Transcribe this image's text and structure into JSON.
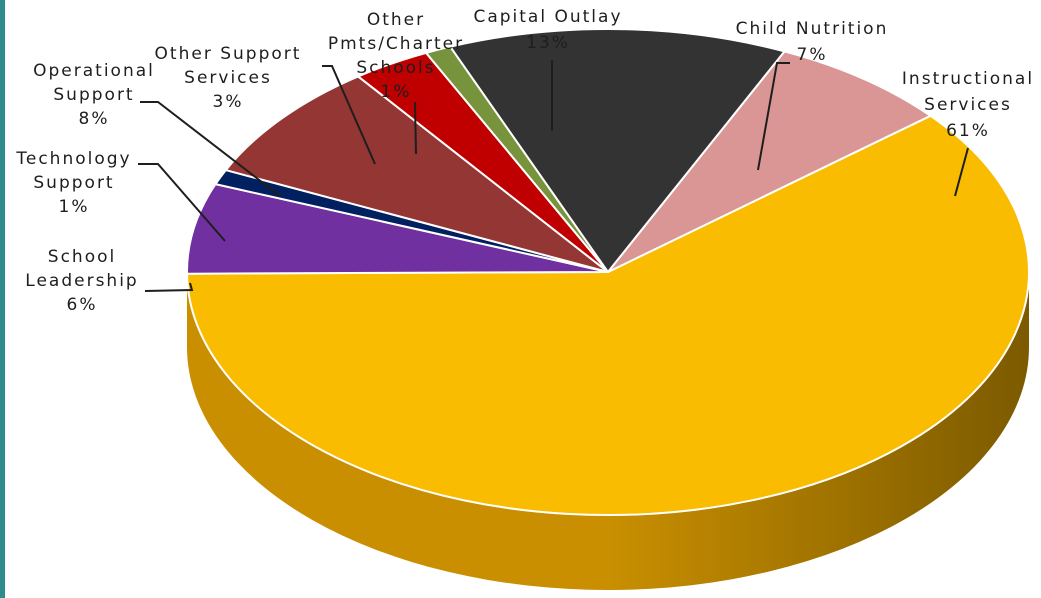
{
  "chart_data": {
    "type": "pie",
    "three_d": true,
    "legend": "none",
    "slices": [
      {
        "name": "Instructional Services",
        "label_lines": [
          "Instructional",
          "Services"
        ],
        "value": 61,
        "value_label": "61%",
        "color": "#f9bc00",
        "side_dark": "#7c5a00",
        "side_light": "#c98f00"
      },
      {
        "name": "School Leadership",
        "label_lines": [
          "School",
          "Leadership"
        ],
        "value": 6,
        "value_label": "6%",
        "color": "#7030a0",
        "side_dark": "#3e1a5a",
        "side_light": "#5b2785"
      },
      {
        "name": "Technology Support",
        "label_lines": [
          "Technology",
          "Support"
        ],
        "value": 1,
        "value_label": "1%",
        "color": "#002060",
        "side_dark": "#001030",
        "side_light": "#001a4d"
      },
      {
        "name": "Operational Support",
        "label_lines": [
          "Operational",
          "Support"
        ],
        "value": 8,
        "value_label": "8%",
        "color": "#943634",
        "side_dark": "#4f1c1b",
        "side_light": "#7a2d2b"
      },
      {
        "name": "Other Support Services",
        "label_lines": [
          "Other Support",
          "Services"
        ],
        "value": 3,
        "value_label": "3%",
        "color": "#c00000",
        "side_dark": "#600000",
        "side_light": "#9a0000"
      },
      {
        "name": "Other Pmts/Charter Schools",
        "label_lines": [
          "Other",
          "Pmts/Charter",
          "Schools"
        ],
        "value": 1,
        "value_label": "1%",
        "color": "#77933c",
        "side_dark": "#3c4a1e",
        "side_light": "#5e7530"
      },
      {
        "name": "Capital Outlay",
        "label_lines": [
          "Capital Outlay"
        ],
        "value": 13,
        "value_label": "13%",
        "color": "#333333",
        "side_dark": "#151515",
        "side_light": "#262626"
      },
      {
        "name": "Child Nutrition",
        "label_lines": [
          "Child Nutrition"
        ],
        "value": 7,
        "value_label": "7%",
        "color": "#d99694",
        "side_dark": "#7a4a49",
        "side_light": "#b07876"
      }
    ]
  }
}
